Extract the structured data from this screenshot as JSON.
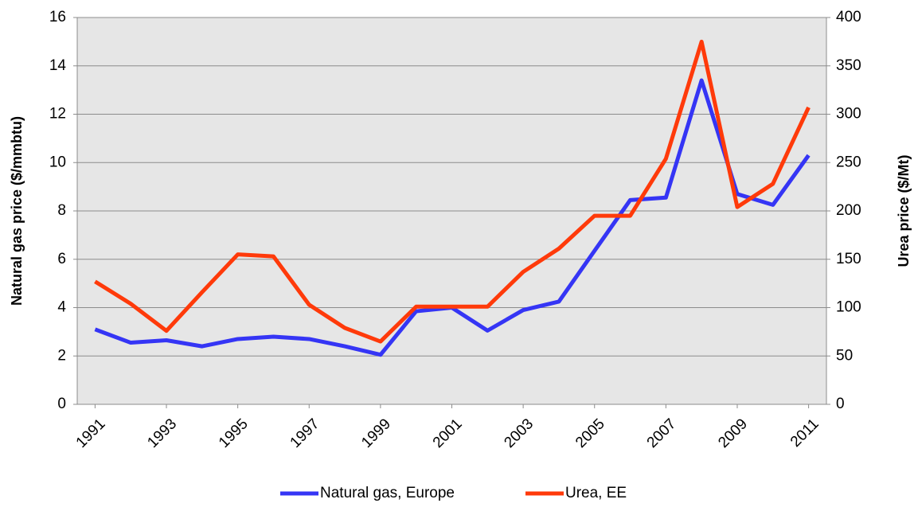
{
  "chart_data": {
    "type": "line",
    "y_label": "Natural  gas  price  ($/mmbtu)",
    "y2_label": "Urea price ($/Mt)",
    "x": [
      1991,
      1992,
      1993,
      1994,
      1995,
      1996,
      1997,
      1998,
      1999,
      2000,
      2001,
      2002,
      2003,
      2004,
      2005,
      2006,
      2007,
      2008,
      2009,
      2010,
      2011
    ],
    "xlim": [
      1990.5,
      2011.5
    ],
    "xticks": [
      1991,
      1993,
      1995,
      1997,
      1999,
      2001,
      2003,
      2005,
      2007,
      2009,
      2011
    ],
    "ylim": [
      0,
      16
    ],
    "yticks": [
      0,
      2,
      4,
      6,
      8,
      10,
      12,
      14,
      16
    ],
    "y2lim": [
      0,
      400
    ],
    "y2ticks": [
      0,
      50,
      100,
      150,
      200,
      250,
      300,
      350,
      400
    ],
    "grid": true,
    "legend": "bottom",
    "series": [
      {
        "name": "Natural gas, Europe",
        "color": "#3535f5",
        "values": [
          3.1,
          2.55,
          2.65,
          2.4,
          2.7,
          2.8,
          2.7,
          2.4,
          2.05,
          3.85,
          4.0,
          3.05,
          3.9,
          4.25,
          6.35,
          8.45,
          8.55,
          13.4,
          8.7,
          8.25,
          10.3
        ]
      },
      {
        "name": "Urea, EE",
        "color": "#ff3a0a",
        "axis": "y2",
        "values": [
          127,
          104,
          76,
          116,
          155,
          153,
          103,
          79,
          65,
          101,
          101,
          101,
          137,
          161,
          195,
          195,
          254,
          375,
          204,
          228,
          307
        ]
      }
    ]
  }
}
